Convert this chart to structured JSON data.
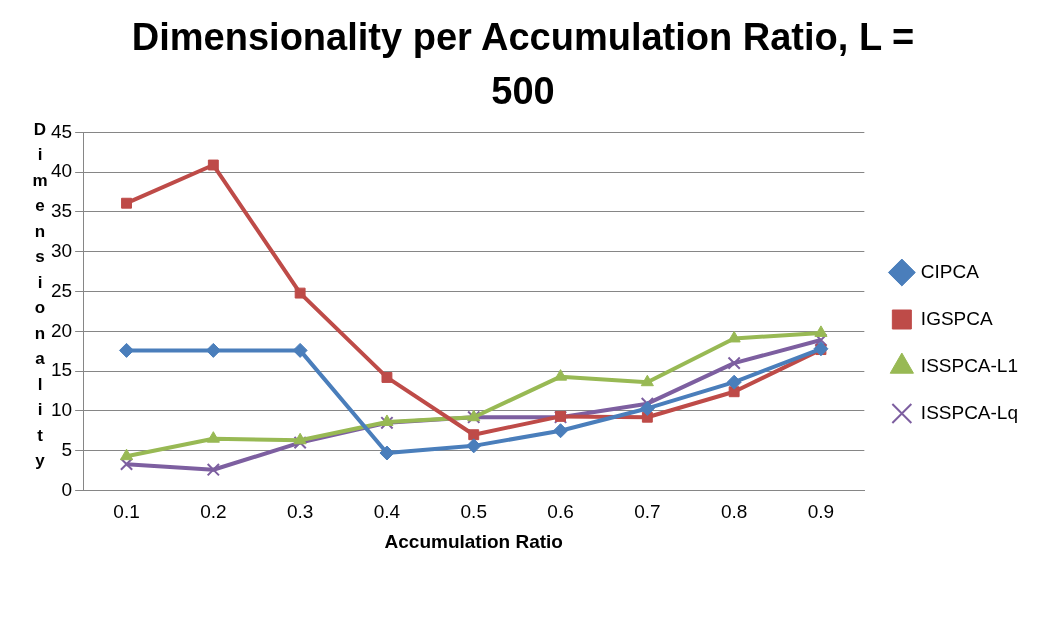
{
  "chart_data": {
    "type": "line",
    "title": "Dimensionality per Accumulation Ratio, L = 500",
    "xlabel": "Accumulation Ratio",
    "ylabel": "Dimensionality",
    "categories": [
      "0.1",
      "0.2",
      "0.3",
      "0.4",
      "0.5",
      "0.6",
      "0.7",
      "0.8",
      "0.9"
    ],
    "series": [
      {
        "name": "CIPCA",
        "color": "#4a7ebb",
        "marker": "diamond",
        "values": [
          17.6,
          17.6,
          17.6,
          4.7,
          5.6,
          7.5,
          10.3,
          13.6,
          17.8
        ]
      },
      {
        "name": "IGSPCA",
        "color": "#be4b48",
        "marker": "square",
        "values": [
          36.1,
          40.9,
          24.8,
          14.2,
          7.0,
          9.3,
          9.2,
          12.4,
          17.7
        ]
      },
      {
        "name": "ISSPCA-L1",
        "color": "#98b954",
        "marker": "triangle",
        "values": [
          4.3,
          6.5,
          6.3,
          8.6,
          9.2,
          14.3,
          13.6,
          19.1,
          19.8
        ]
      },
      {
        "name": "ISSPCA-Lq",
        "color": "#7d5fa0",
        "marker": "cross",
        "values": [
          3.3,
          2.6,
          6.0,
          8.5,
          9.2,
          9.2,
          10.9,
          16.0,
          18.9
        ]
      }
    ],
    "ylim": [
      0,
      45
    ],
    "yticks": [
      0,
      5,
      10,
      15,
      20,
      25,
      30,
      35,
      40,
      45
    ],
    "grid": "y",
    "legend": "right",
    "line_style": "solid"
  }
}
